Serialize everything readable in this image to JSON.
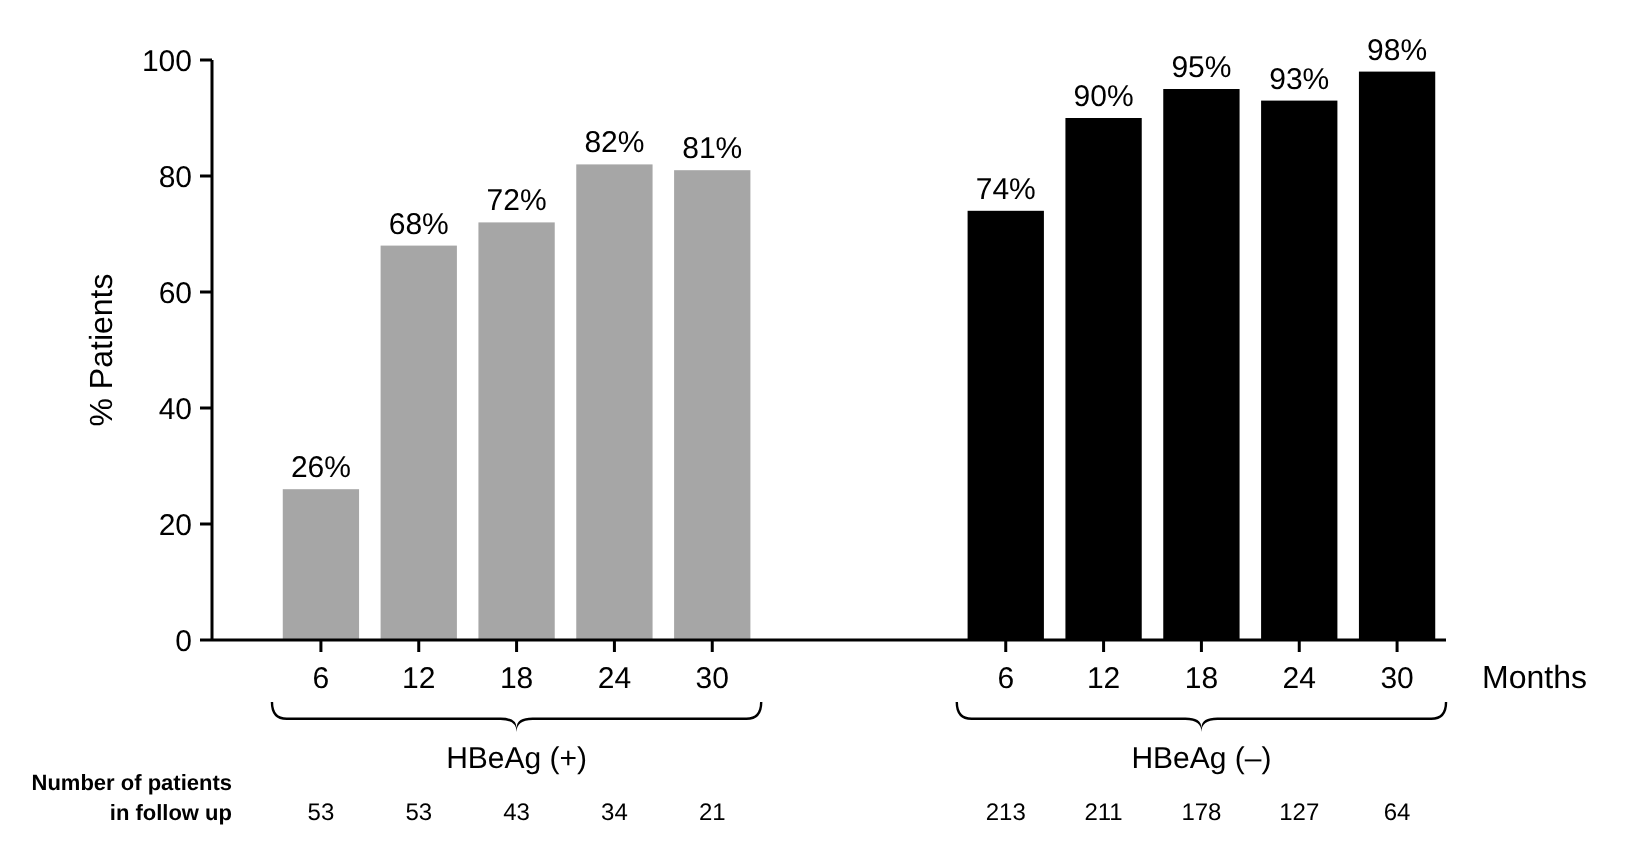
{
  "chart_data": {
    "type": "bar",
    "ylabel": "% Patients",
    "xlabel": "Months",
    "categories": [
      "6",
      "12",
      "18",
      "24",
      "30",
      null,
      null,
      "6",
      "12",
      "18",
      "24",
      "30"
    ],
    "values": [
      26,
      68,
      72,
      82,
      81,
      null,
      null,
      74,
      90,
      95,
      93,
      98
    ],
    "value_labels": [
      "26%",
      "68%",
      "72%",
      "82%",
      "81%",
      null,
      null,
      "74%",
      "90%",
      "95%",
      "93%",
      "98%"
    ],
    "colors": [
      "#a6a6a6",
      "#a6a6a6",
      "#a6a6a6",
      "#a6a6a6",
      "#a6a6a6",
      null,
      null,
      "#000000",
      "#000000",
      "#000000",
      "#000000",
      "#000000"
    ],
    "ylim": [
      0,
      100
    ],
    "yticks": [
      0,
      20,
      40,
      60,
      80,
      100
    ],
    "grid": false,
    "annotations": [
      "HBeAg (+)",
      "HBeAg (–)",
      "Number of patients\nin follow up",
      "53",
      "53",
      "43",
      "34",
      "21",
      "213",
      "211",
      "178",
      "127",
      "64"
    ]
  }
}
